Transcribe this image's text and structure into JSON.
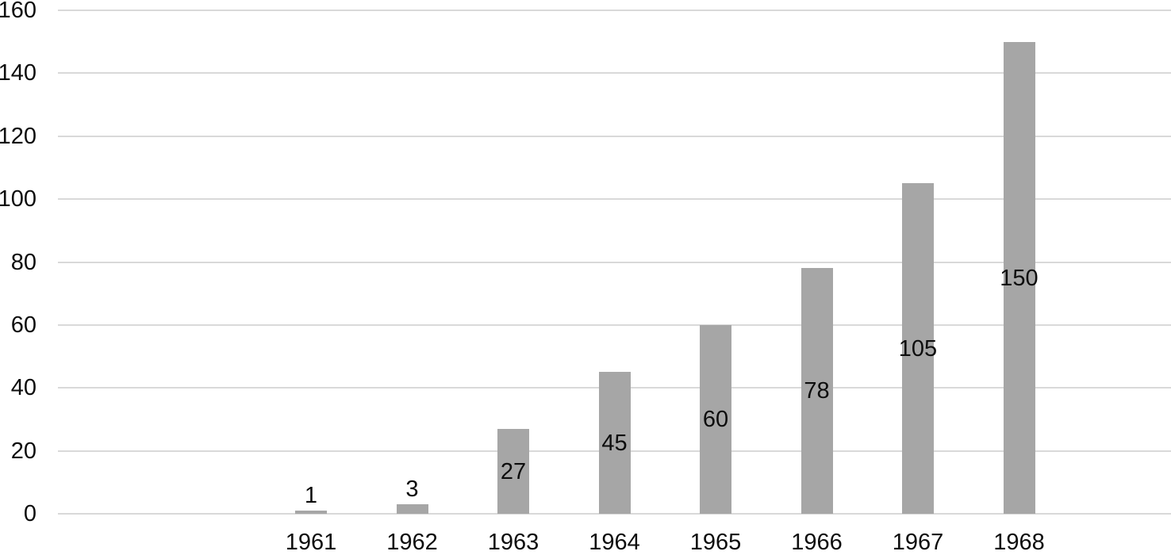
{
  "chart_data": {
    "type": "bar",
    "title": "",
    "xlabel": "",
    "ylabel": "",
    "categories": [
      "1961",
      "1962",
      "1963",
      "1964",
      "1965",
      "1966",
      "1967",
      "1968"
    ],
    "values": [
      1,
      3,
      27,
      45,
      60,
      78,
      105,
      150
    ],
    "data_labels": [
      "1",
      "3",
      "27",
      "45",
      "60",
      "78",
      "105",
      "150"
    ],
    "ylim": [
      0,
      160
    ],
    "yticks": [
      0,
      20,
      40,
      60,
      80,
      100,
      120,
      140,
      160
    ],
    "grid": "horizontal",
    "legend": "none",
    "data_label_position": "inside-center, outside-end for bars too small to fit",
    "colors": {
      "bar_fill": "#a6a6a6",
      "gridline": "#d9d9d9",
      "text": "#0d0d0d",
      "background": "#ffffff"
    }
  }
}
